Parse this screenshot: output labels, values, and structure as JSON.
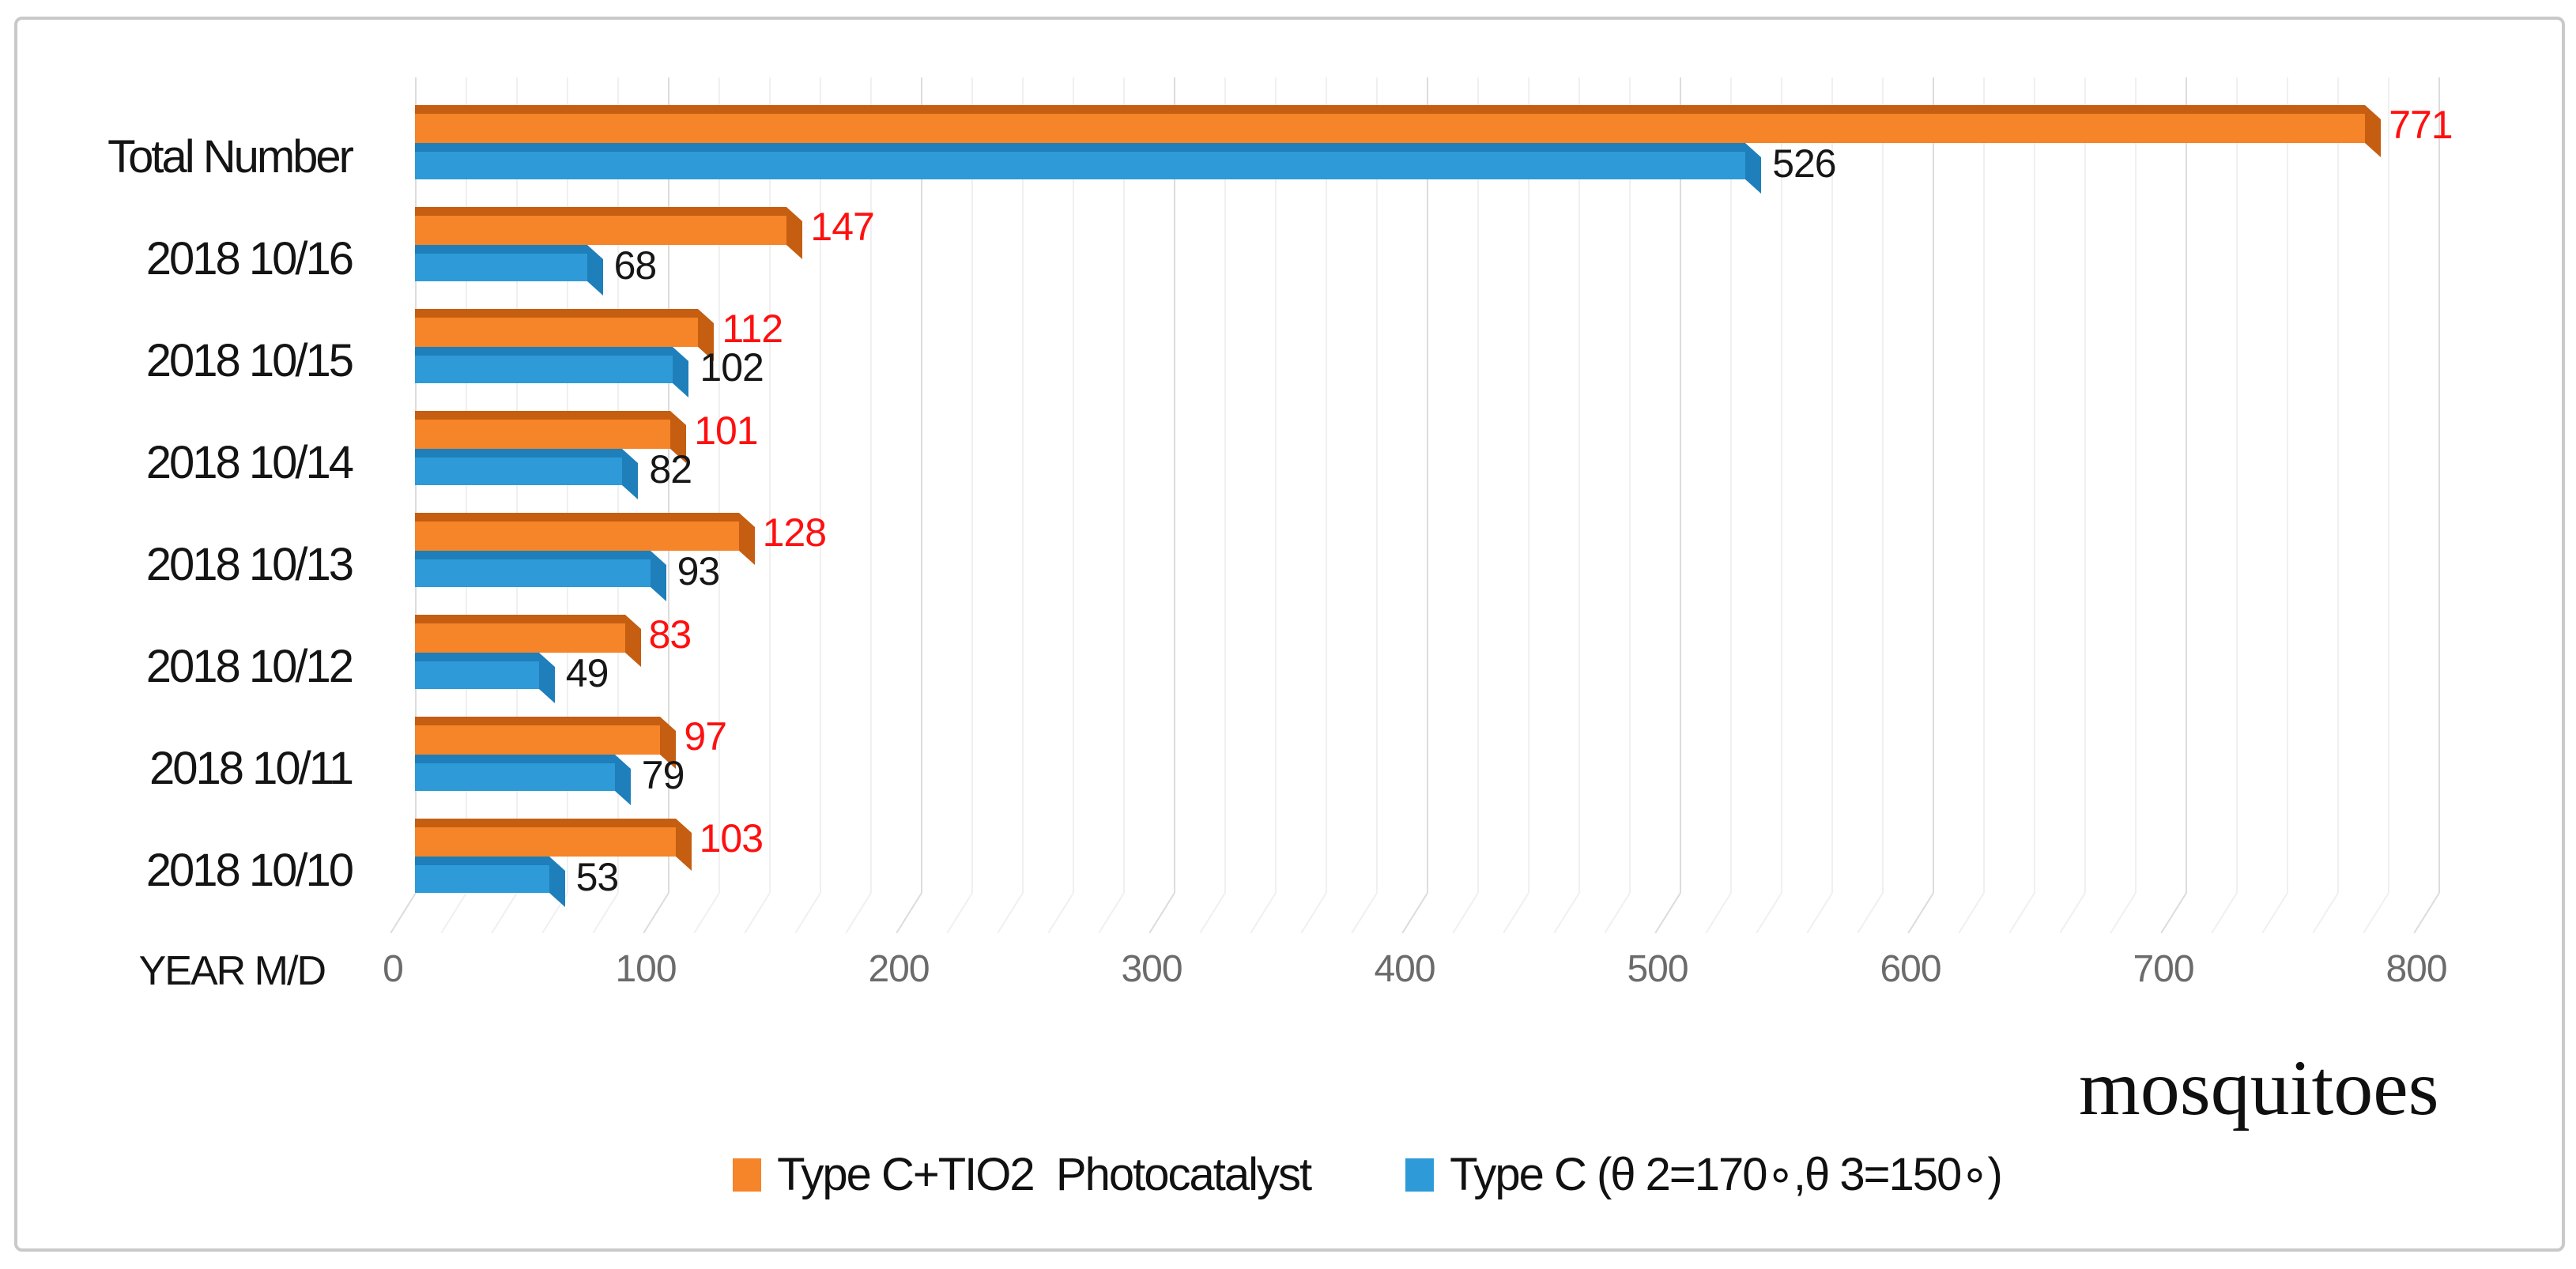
{
  "figure": {
    "annotation": "mosquitoes"
  },
  "chart_data": {
    "type": "bar",
    "orientation": "horizontal",
    "effect": "3d",
    "title": "",
    "categories": [
      "Total Number",
      "2018 10/16",
      "2018 10/15",
      "2018 10/14",
      "2018 10/13",
      "2018 10/12",
      "2018 10/11",
      "2018 10/10"
    ],
    "series": [
      {
        "name": "Type C+TIO2  Photocatalyst",
        "color": "#F68429",
        "edge_color": "#C55E11",
        "label_color": "#FE1010",
        "values": [
          771,
          147,
          112,
          101,
          128,
          83,
          97,
          103
        ]
      },
      {
        "name": "Type C (θ 2=170∘,θ 3=150∘)",
        "color": "#2E9BD8",
        "edge_color": "#1E7FBB",
        "label_color": "#161616",
        "values": [
          526,
          68,
          102,
          82,
          93,
          49,
          79,
          53
        ]
      }
    ],
    "x_axis": {
      "label": "YEAR M/D",
      "ticks": [
        0,
        100,
        200,
        300,
        400,
        500,
        600,
        700,
        800
      ],
      "minor_step": 20,
      "range": [
        0,
        800
      ]
    },
    "grid": true,
    "legend_position": "bottom"
  },
  "colors": {
    "grid_major": "#dcdcdc",
    "grid_minor": "#f0f0f0",
    "tick_label": "#6b6b6b",
    "border": "#c9c9c9"
  }
}
